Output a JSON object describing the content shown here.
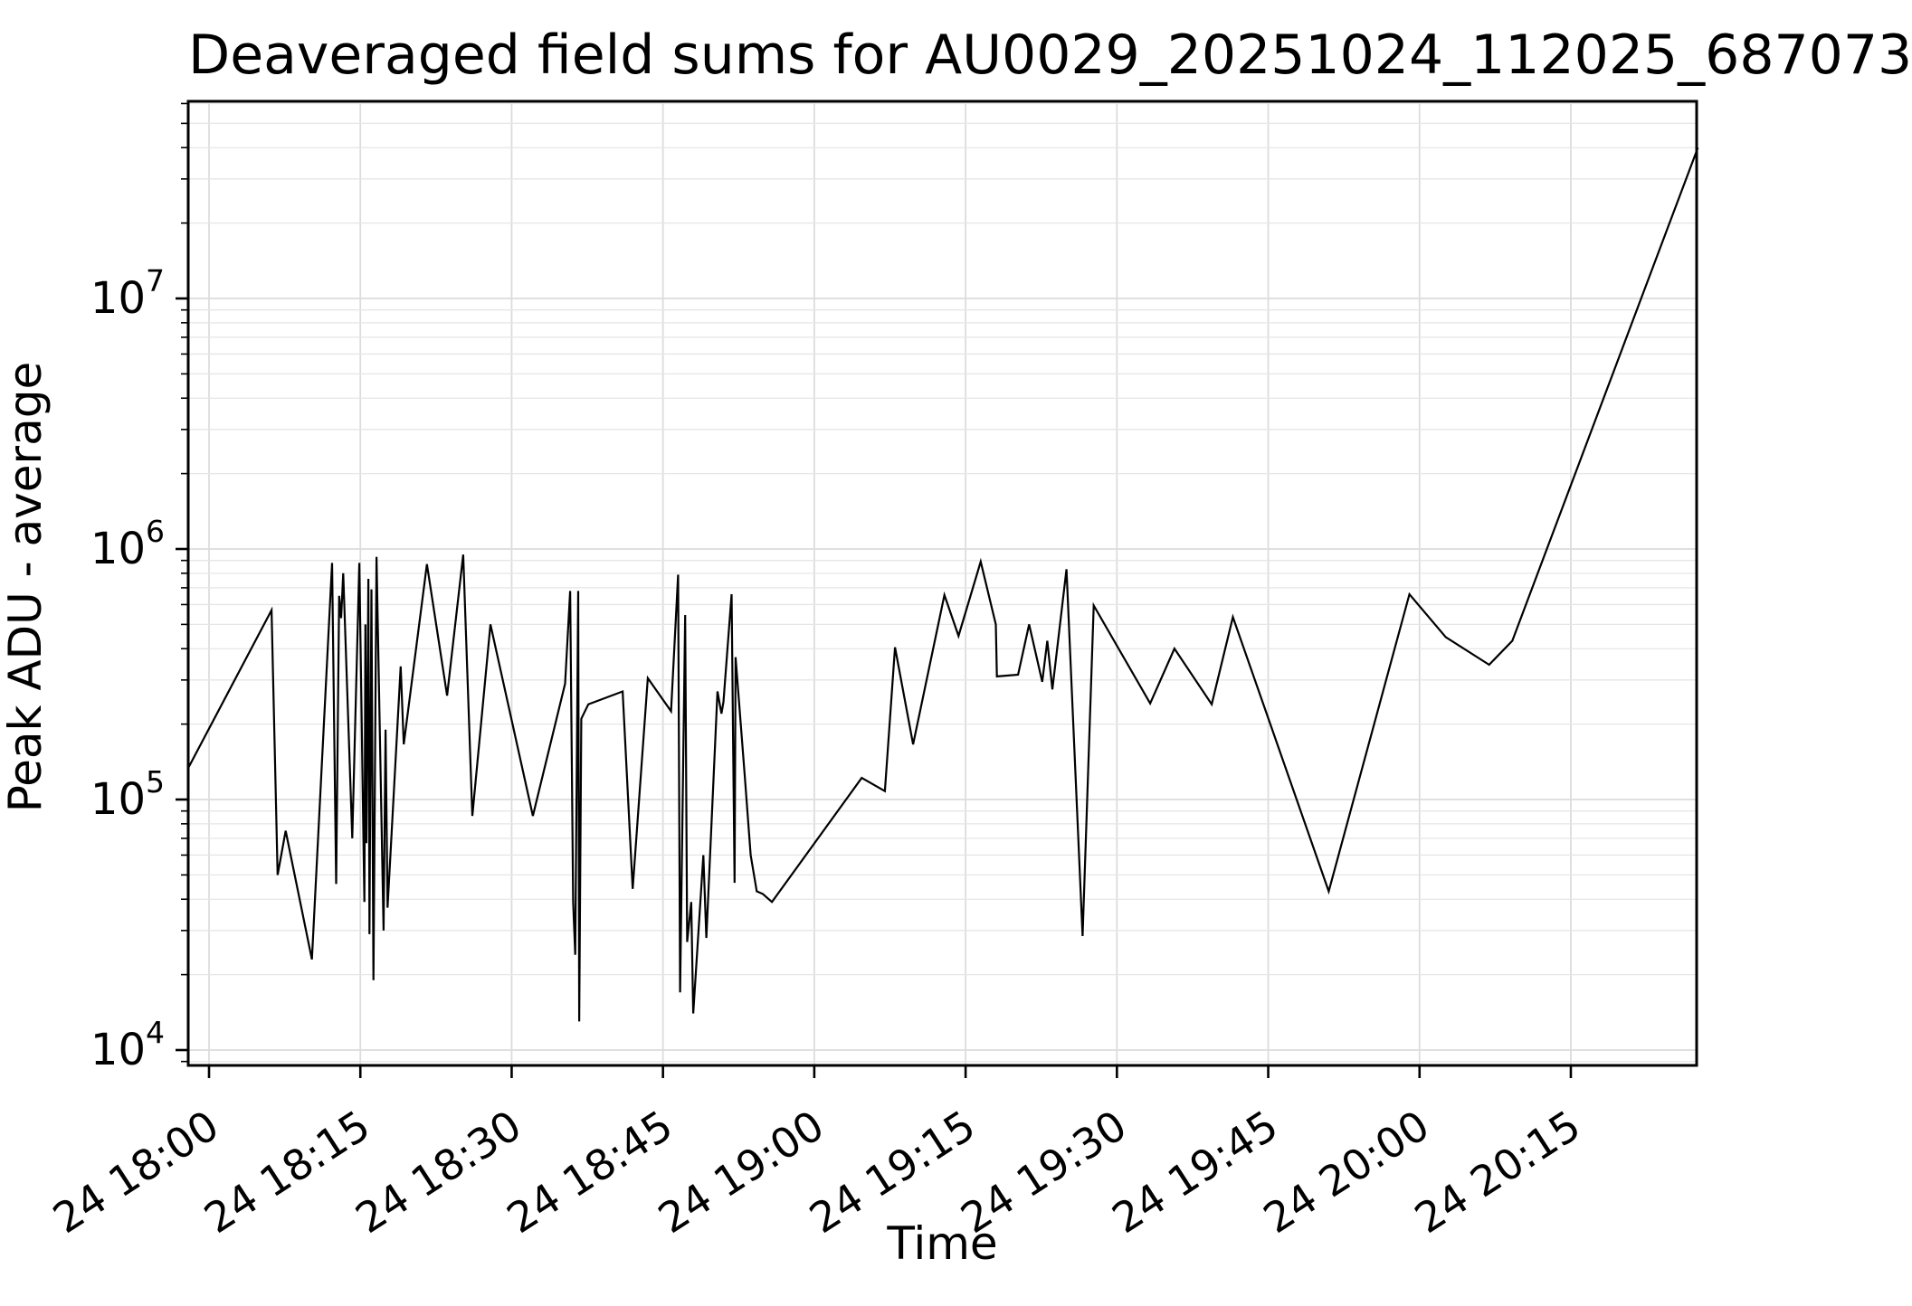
{
  "title": "Deaveraged field sums for AU0029_20251024_112025_687073",
  "chart_data": {
    "type": "line",
    "title": "Deaveraged field sums for AU0029_20251024_112025_687073",
    "xlabel": "Time",
    "ylabel": "Peak ADU - average",
    "y_scale": "log",
    "ylim": [
      8700,
      61000000
    ],
    "grid": true,
    "legend": "none",
    "line_color": "#000000",
    "grid_color_major": "#dcdcdc",
    "grid_color_minor": "#e6e6e6",
    "day": "24",
    "x_ticks": [
      {
        "label": "24 18:00",
        "time": "18:00:00"
      },
      {
        "label": "24 18:15",
        "time": "18:15:00"
      },
      {
        "label": "24 18:30",
        "time": "18:30:00"
      },
      {
        "label": "24 18:45",
        "time": "18:45:00"
      },
      {
        "label": "24 19:00",
        "time": "19:00:00"
      },
      {
        "label": "24 19:15",
        "time": "19:15:00"
      },
      {
        "label": "24 19:30",
        "time": "19:30:00"
      },
      {
        "label": "24 19:45",
        "time": "19:45:00"
      },
      {
        "label": "24 20:00",
        "time": "20:00:00"
      },
      {
        "label": "24 20:15",
        "time": "20:15:00"
      }
    ],
    "y_ticks": [
      {
        "value": 10000,
        "base": "10",
        "exp": "4"
      },
      {
        "value": 100000,
        "base": "10",
        "exp": "5"
      },
      {
        "value": 1000000,
        "base": "10",
        "exp": "6"
      },
      {
        "value": 10000000,
        "base": "10",
        "exp": "7"
      }
    ],
    "points": [
      [
        "17:58:00",
        135000
      ],
      [
        "18:06:12",
        570000
      ],
      [
        "18:06:48",
        50000
      ],
      [
        "18:07:36",
        75000
      ],
      [
        "18:10:12",
        23000
      ],
      [
        "18:12:12",
        880000
      ],
      [
        "18:12:36",
        46000
      ],
      [
        "18:12:54",
        650000
      ],
      [
        "18:13:06",
        530000
      ],
      [
        "18:13:18",
        800000
      ],
      [
        "18:14:12",
        70000
      ],
      [
        "18:14:54",
        880000
      ],
      [
        "18:15:24",
        39000
      ],
      [
        "18:15:30",
        500000
      ],
      [
        "18:15:36",
        67000
      ],
      [
        "18:15:48",
        760000
      ],
      [
        "18:15:54",
        29000
      ],
      [
        "18:16:06",
        690000
      ],
      [
        "18:16:18",
        19000
      ],
      [
        "18:16:36",
        930000
      ],
      [
        "18:17:18",
        30000
      ],
      [
        "18:17:30",
        190000
      ],
      [
        "18:17:42",
        37000
      ],
      [
        "18:19:00",
        340000
      ],
      [
        "18:19:18",
        166000
      ],
      [
        "18:21:36",
        870000
      ],
      [
        "18:23:36",
        260000
      ],
      [
        "18:25:12",
        950000
      ],
      [
        "18:26:06",
        86000
      ],
      [
        "18:27:54",
        500000
      ],
      [
        "18:32:06",
        86000
      ],
      [
        "18:35:18",
        290000
      ],
      [
        "18:35:48",
        680000
      ],
      [
        "18:36:06",
        39000
      ],
      [
        "18:36:18",
        24000
      ],
      [
        "18:36:36",
        680000
      ],
      [
        "18:36:42",
        13000
      ],
      [
        "18:36:54",
        210000
      ],
      [
        "18:37:36",
        240000
      ],
      [
        "18:41:00",
        270000
      ],
      [
        "18:42:00",
        44000
      ],
      [
        "18:43:30",
        305000
      ],
      [
        "18:45:48",
        225000
      ],
      [
        "18:46:30",
        790000
      ],
      [
        "18:46:42",
        17000
      ],
      [
        "18:47:12",
        545000
      ],
      [
        "18:47:24",
        27000
      ],
      [
        "18:47:48",
        39000
      ],
      [
        "18:48:00",
        14000
      ],
      [
        "18:49:00",
        60000
      ],
      [
        "18:49:18",
        28000
      ],
      [
        "18:50:24",
        270000
      ],
      [
        "18:50:48",
        220000
      ],
      [
        "18:51:00",
        245000
      ],
      [
        "18:51:48",
        660000
      ],
      [
        "18:52:06",
        46500
      ],
      [
        "18:52:12",
        370000
      ],
      [
        "18:53:06",
        125000
      ],
      [
        "18:53:42",
        60000
      ],
      [
        "18:54:18",
        43000
      ],
      [
        "18:54:54",
        42000
      ],
      [
        "18:55:48",
        39000
      ],
      [
        "19:04:42",
        122000
      ],
      [
        "19:07:00",
        108000
      ],
      [
        "19:08:00",
        405000
      ],
      [
        "19:09:48",
        166000
      ],
      [
        "19:12:54",
        655000
      ],
      [
        "19:14:18",
        450000
      ],
      [
        "19:16:30",
        890000
      ],
      [
        "19:18:00",
        500000
      ],
      [
        "19:18:06",
        310000
      ],
      [
        "19:20:12",
        315000
      ],
      [
        "19:21:18",
        500000
      ],
      [
        "19:22:36",
        295000
      ],
      [
        "19:23:06",
        430000
      ],
      [
        "19:23:36",
        275000
      ],
      [
        "19:25:00",
        830000
      ],
      [
        "19:26:36",
        28500
      ],
      [
        "19:27:42",
        595000
      ],
      [
        "19:33:18",
        242000
      ],
      [
        "19:35:42",
        400000
      ],
      [
        "19:39:24",
        240000
      ],
      [
        "19:41:30",
        535000
      ],
      [
        "19:51:00",
        43000
      ],
      [
        "19:59:00",
        660000
      ],
      [
        "20:02:36",
        445000
      ],
      [
        "20:06:54",
        345000
      ],
      [
        "20:09:12",
        430000
      ],
      [
        "20:27:36",
        40000000
      ]
    ]
  }
}
